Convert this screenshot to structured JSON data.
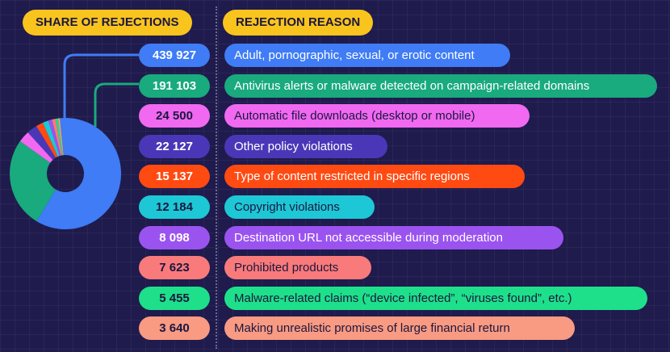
{
  "headers": {
    "share": "SHARE OF REJECTIONS",
    "reason": "REJECTION REASON"
  },
  "chart_data": {
    "type": "pie",
    "title": "",
    "categories": [
      "Adult, pornographic, sexual, or erotic content",
      "Antivirus alerts or malware detected on campaign-related domains",
      "Automatic file downloads (desktop or mobile)",
      "Other policy violations",
      "Type of content restricted in specific regions",
      "Copyright violations",
      "Destination URL not accessible during moderation",
      "Prohibited products",
      "Malware-related claims (“device infected”, “viruses found”, etc.)",
      "Making unrealistic promises of large financial return"
    ],
    "values": [
      439927,
      191103,
      24500,
      22127,
      15137,
      12184,
      8098,
      7623,
      5455,
      3640
    ],
    "value_labels": [
      "439 927",
      "191 103",
      "24 500",
      "22 127",
      "15 137",
      "12 184",
      "8 098",
      "7 623",
      "5 455",
      "3 640"
    ],
    "colors": [
      "#3f7cf5",
      "#19aa7d",
      "#f069f0",
      "#4a37b8",
      "#ff4a12",
      "#1ec7d5",
      "#9b53f0",
      "#f97a7a",
      "#1ee08a",
      "#f99a82"
    ],
    "text_colors": [
      "#ffffff",
      "#ffffff",
      "#1b1740",
      "#ffffff",
      "#ffffff",
      "#1b1740",
      "#ffffff",
      "#1b1740",
      "#1b1740",
      "#1b1740"
    ]
  }
}
